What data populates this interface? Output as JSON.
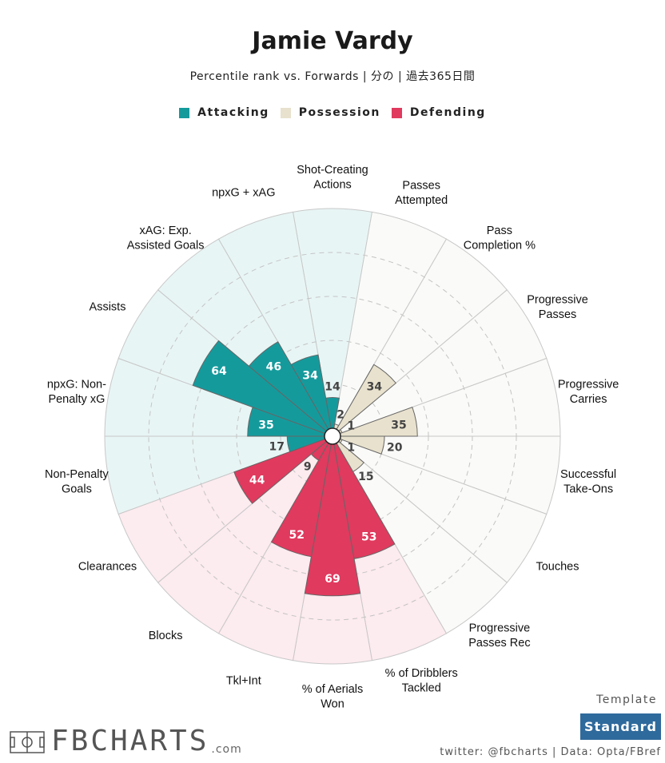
{
  "header": {
    "title": "Jamie Vardy",
    "subtitle": "Percentile rank vs. Forwards | 分の | 過去365日間"
  },
  "legend": [
    {
      "label": "Attacking",
      "color": "#159a9c"
    },
    {
      "label": "Possession",
      "color": "#e8e1cd"
    },
    {
      "label": "Defending",
      "color": "#e03a5e"
    }
  ],
  "chart_data": {
    "type": "polar-bar",
    "title": "Jamie Vardy",
    "subtitle": "Percentile rank vs. Forwards | 分の | 過去365日間",
    "rlim": [
      0,
      100
    ],
    "grid": true,
    "categories": [
      {
        "label": "Shot-Creating Actions",
        "value": 14,
        "group": "Attacking"
      },
      {
        "label": "Passes Attempted",
        "value": 2,
        "group": "Possession"
      },
      {
        "label": "Pass Completion %",
        "value": 34,
        "group": "Possession"
      },
      {
        "label": "Progressive Passes",
        "value": 1,
        "group": "Possession"
      },
      {
        "label": "Progressive Carries",
        "value": 35,
        "group": "Possession"
      },
      {
        "label": "Successful Take-Ons",
        "value": 20,
        "group": "Possession"
      },
      {
        "label": "Touches",
        "value": 1,
        "group": "Possession"
      },
      {
        "label": "Progressive Passes Rec",
        "value": 15,
        "group": "Possession"
      },
      {
        "label": "% of Dribblers Tackled",
        "value": 53,
        "group": "Defending"
      },
      {
        "label": "% of Aerials Won",
        "value": 69,
        "group": "Defending"
      },
      {
        "label": "Tkl+Int",
        "value": 52,
        "group": "Defending"
      },
      {
        "label": "Blocks",
        "value": 9,
        "group": "Defending"
      },
      {
        "label": "Clearances",
        "value": 44,
        "group": "Defending"
      },
      {
        "label": "Non-Penalty Goals",
        "value": 17,
        "group": "Attacking"
      },
      {
        "label": "npxG: Non-Penalty xG",
        "value": 35,
        "group": "Attacking"
      },
      {
        "label": "Assists",
        "value": 64,
        "group": "Attacking"
      },
      {
        "label": "xAG: Exp. Assisted Goals",
        "value": 46,
        "group": "Attacking"
      },
      {
        "label": "npxG + xAG",
        "value": 34,
        "group": "Attacking"
      }
    ],
    "display_labels": [
      [
        "Shot-Creating",
        "Actions"
      ],
      [
        "Passes",
        "Attempted"
      ],
      [
        "Pass",
        "Completion %"
      ],
      [
        "Progressive",
        "Passes"
      ],
      [
        "Progressive",
        "Carries"
      ],
      [
        "Successful",
        "Take-Ons"
      ],
      [
        "Touches"
      ],
      [
        "Progressive",
        "Passes Rec"
      ],
      [
        "% of Dribblers",
        "Tackled"
      ],
      [
        "% of Aerials",
        "Won"
      ],
      [
        "Tkl+Int"
      ],
      [
        "Blocks"
      ],
      [
        "Clearances"
      ],
      [
        "Non-Penalty",
        "Goals"
      ],
      [
        "npxG: Non-",
        "Penalty xG"
      ],
      [
        "Assists"
      ],
      [
        "xAG: Exp.",
        "Assisted Goals"
      ],
      [
        "npxG + xAG"
      ]
    ],
    "group_colors": {
      "Attacking": {
        "bar": "#159a9c",
        "bg": "#e8f5f5"
      },
      "Possession": {
        "bar": "#e8e1cd",
        "bg": "#fafaf8"
      },
      "Defending": {
        "bar": "#e03a5e",
        "bg": "#fcebef"
      }
    }
  },
  "footer": {
    "template_label": "Template",
    "template_value": "Standard",
    "credit": "twitter: @fbcharts | Data: Opta/FBref",
    "logo_text": "FBCHARTS",
    "logo_suffix": ".com"
  }
}
